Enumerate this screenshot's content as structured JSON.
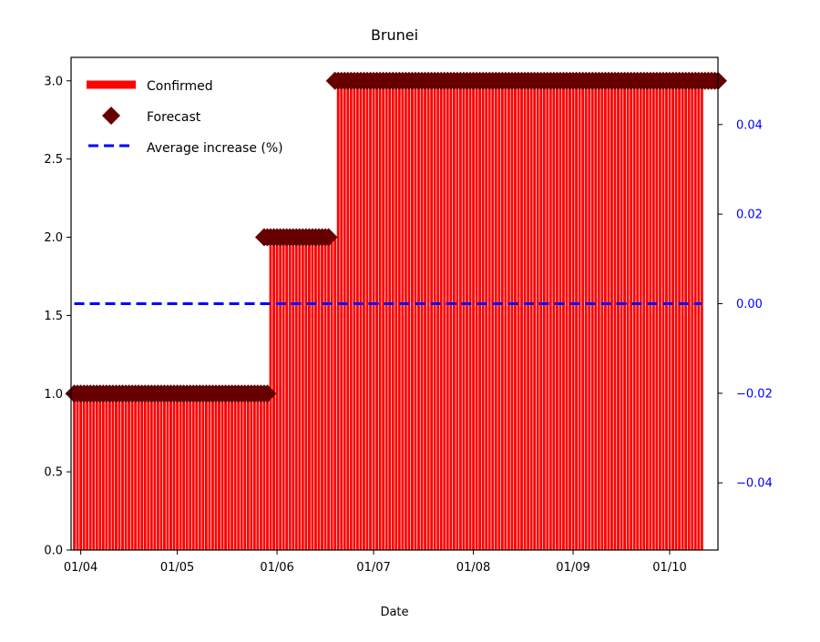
{
  "chart_data": {
    "type": "bar",
    "title": "Brunei",
    "xlabel": "Date",
    "ylabel": "",
    "x_range": [
      "2020-03-29",
      "2020-10-16"
    ],
    "ylim": [
      0,
      3.15
    ],
    "y2lim": [
      -0.055,
      0.055
    ],
    "x_ticks": [
      {
        "date": "2020-04-01",
        "label": "01/04"
      },
      {
        "date": "2020-05-01",
        "label": "01/05"
      },
      {
        "date": "2020-06-01",
        "label": "01/06"
      },
      {
        "date": "2020-07-01",
        "label": "01/07"
      },
      {
        "date": "2020-08-01",
        "label": "01/08"
      },
      {
        "date": "2020-09-01",
        "label": "01/09"
      },
      {
        "date": "2020-10-01",
        "label": "01/10"
      }
    ],
    "y_ticks": [
      {
        "value": 0.0,
        "label": "0.0"
      },
      {
        "value": 0.5,
        "label": "0.5"
      },
      {
        "value": 1.0,
        "label": "1.0"
      },
      {
        "value": 1.5,
        "label": "1.5"
      },
      {
        "value": 2.0,
        "label": "2.0"
      },
      {
        "value": 2.5,
        "label": "2.5"
      },
      {
        "value": 3.0,
        "label": "3.0"
      }
    ],
    "y2_ticks": [
      {
        "value": 0.04,
        "label": "0.04"
      },
      {
        "value": 0.02,
        "label": "0.02"
      },
      {
        "value": 0.0,
        "label": "0.00"
      },
      {
        "value": -0.02,
        "label": "−0.02"
      },
      {
        "value": -0.04,
        "label": "−0.04"
      }
    ],
    "grid": false,
    "legend_position": "top-left",
    "series": [
      {
        "name": "Confirmed",
        "kind": "bar",
        "color": "#ff0000",
        "segments": [
          {
            "start": "2020-03-30",
            "end": "2020-05-29",
            "value": 1
          },
          {
            "start": "2020-05-30",
            "end": "2020-06-19",
            "value": 2
          },
          {
            "start": "2020-06-20",
            "end": "2020-10-11",
            "value": 3
          }
        ]
      },
      {
        "name": "Forecast",
        "kind": "scatter",
        "marker": "diamond",
        "color": "#660000",
        "segments": [
          {
            "start": "2020-03-30",
            "end": "2020-05-29",
            "value": 1
          },
          {
            "start": "2020-05-28",
            "end": "2020-06-17",
            "value": 2
          },
          {
            "start": "2020-06-19",
            "end": "2020-10-16",
            "value": 3
          }
        ]
      },
      {
        "name": "Average increase (%)",
        "kind": "line",
        "style": "dashed",
        "axis": "right",
        "color": "#0000ff",
        "x": [
          "2020-03-30",
          "2020-10-11"
        ],
        "values": [
          0.0,
          0.0
        ]
      }
    ]
  }
}
